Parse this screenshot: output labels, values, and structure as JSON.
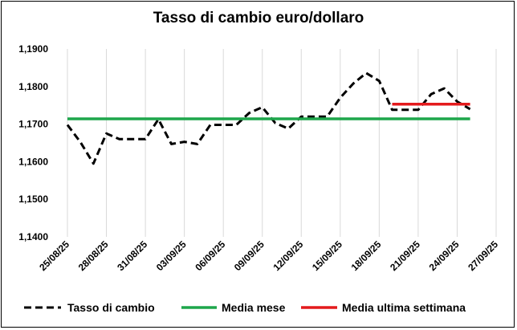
{
  "chart_data": {
    "type": "line",
    "title": "Tasso di cambio euro/dollaro",
    "xlabel": "",
    "ylabel": "",
    "ylim": [
      1.14,
      1.19
    ],
    "y_ticks": [
      "1,1400",
      "1,1500",
      "1,1600",
      "1,1700",
      "1,1800",
      "1,1900"
    ],
    "y_tick_values": [
      1.14,
      1.15,
      1.16,
      1.17,
      1.18,
      1.19
    ],
    "x_tick_labels": [
      "25/08/25",
      "28/08/25",
      "31/08/25",
      "03/09/25",
      "06/09/25",
      "09/09/25",
      "12/09/25",
      "15/09/25",
      "18/09/25",
      "21/09/25",
      "24/09/25",
      "27/09/25"
    ],
    "x_range": [
      "25/08/25",
      "27/09/25"
    ],
    "grid": "vertical",
    "legend": "bottom",
    "series": [
      {
        "name": "Tasso di cambio",
        "style": "dashed",
        "color": "#000000",
        "x": [
          "25/08/25",
          "26/08/25",
          "27/08/25",
          "28/08/25",
          "29/08/25",
          "30/08/25",
          "31/08/25",
          "01/09/25",
          "02/09/25",
          "03/09/25",
          "04/09/25",
          "05/09/25",
          "06/09/25",
          "07/09/25",
          "08/09/25",
          "09/09/25",
          "10/09/25",
          "11/09/25",
          "12/09/25",
          "13/09/25",
          "14/09/25",
          "15/09/25",
          "16/09/25",
          "17/09/25",
          "18/09/25",
          "19/09/25",
          "20/09/25",
          "21/09/25",
          "22/09/25",
          "23/09/25",
          "24/09/25",
          "25/09/25"
        ],
        "values": [
          1.1698,
          1.1652,
          1.1595,
          1.1675,
          1.166,
          1.166,
          1.166,
          1.1713,
          1.1647,
          1.1653,
          1.1647,
          1.1698,
          1.1698,
          1.1698,
          1.173,
          1.1745,
          1.1703,
          1.1688,
          1.172,
          1.172,
          1.172,
          1.177,
          1.1808,
          1.1836,
          1.1815,
          1.1738,
          1.1738,
          1.1738,
          1.178,
          1.1795,
          1.176,
          1.174
        ]
      },
      {
        "name": "Media mese",
        "style": "solid",
        "color": "#1ea64b",
        "x": [
          "25/08/25",
          "25/09/25"
        ],
        "values": [
          1.1714,
          1.1714
        ]
      },
      {
        "name": "Media ultima settimana",
        "style": "solid",
        "color": "#e41a1c",
        "x": [
          "19/09/25",
          "25/09/25"
        ],
        "values": [
          1.1753,
          1.1753
        ]
      }
    ]
  }
}
